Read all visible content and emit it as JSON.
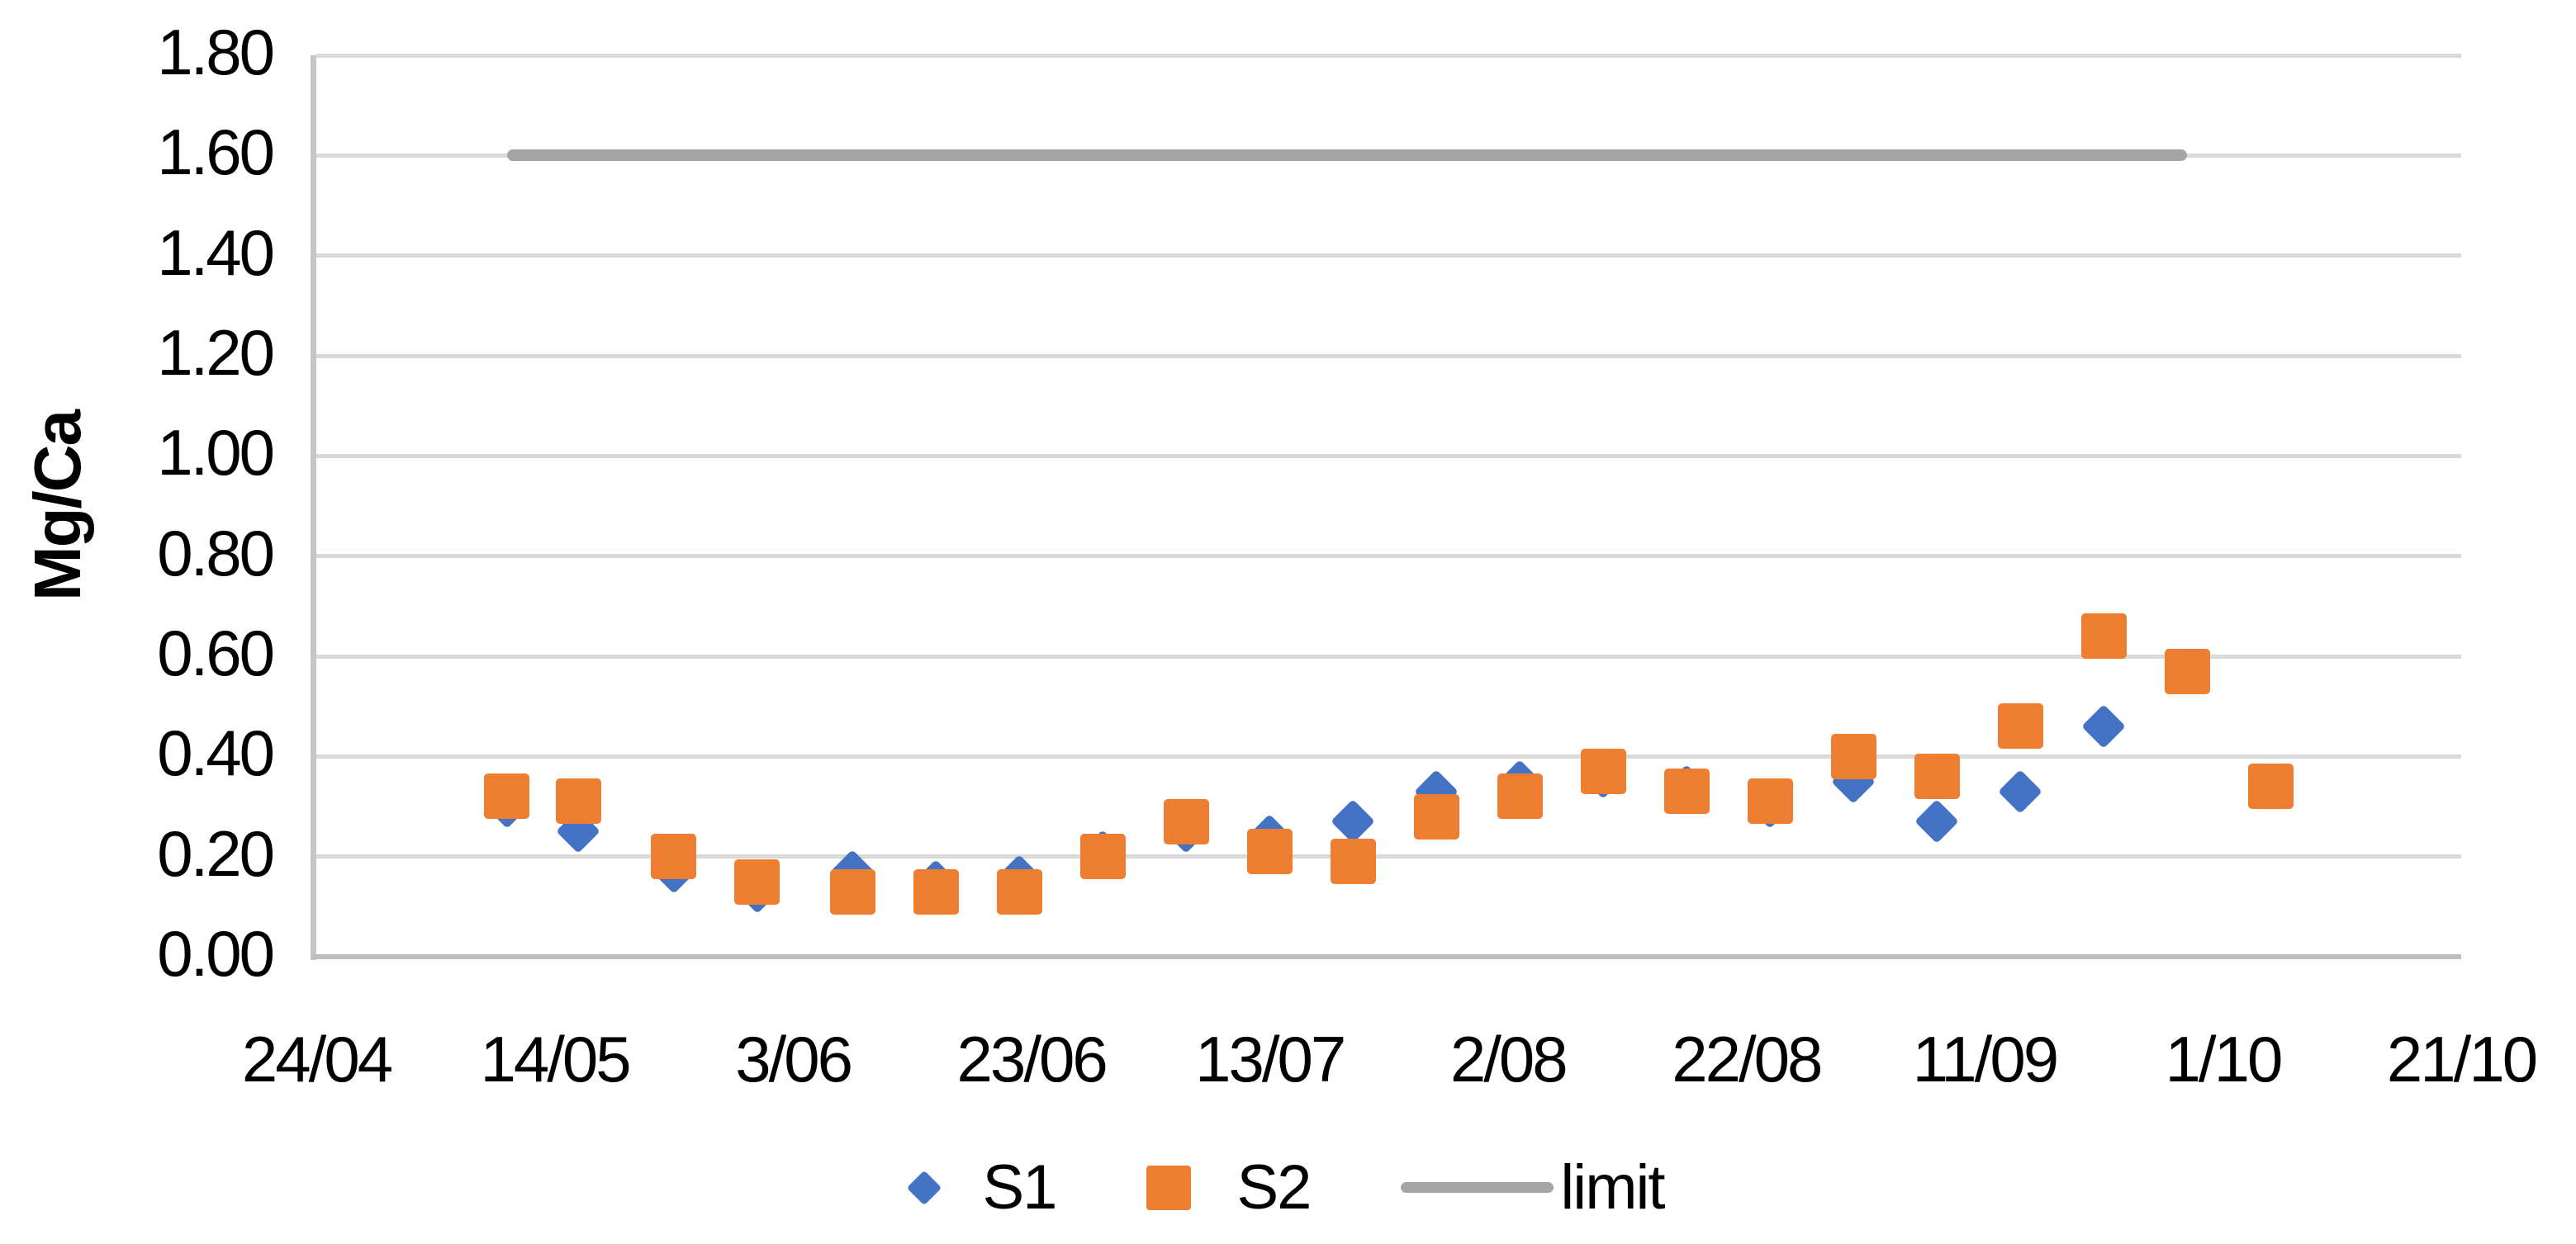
{
  "chart_data": {
    "type": "scatter",
    "title": "",
    "xlabel": "",
    "ylabel": "Mg/Ca",
    "ylim": [
      0,
      1.8
    ],
    "ytick_step": 0.2,
    "ytick_labels": [
      "0.00",
      "0.20",
      "0.40",
      "0.60",
      "0.80",
      "1.00",
      "1.20",
      "1.40",
      "1.60",
      "1.80"
    ],
    "grid": "horizontal",
    "legend_position": "bottom",
    "x_axis": {
      "type": "date",
      "tick_labels": [
        "24/04",
        "14/05",
        "3/06",
        "23/06",
        "13/07",
        "2/08",
        "22/08",
        "11/09",
        "1/10",
        "21/10"
      ],
      "tick_day_offsets": [
        0,
        20,
        40,
        60,
        80,
        100,
        120,
        140,
        160,
        180
      ],
      "range_days": [
        0,
        180
      ]
    },
    "series": [
      {
        "name": "S1",
        "marker": "diamond",
        "color": "#4472C4",
        "points": [
          {
            "date": "10/05",
            "day": 16,
            "value": 0.3
          },
          {
            "date": "16/05",
            "day": 22,
            "value": 0.25
          },
          {
            "date": "24/05",
            "day": 30,
            "value": 0.17
          },
          {
            "date": "31/05",
            "day": 37,
            "value": 0.13
          },
          {
            "date": "8/06",
            "day": 45,
            "value": 0.17
          },
          {
            "date": "15/06",
            "day": 52,
            "value": 0.15
          },
          {
            "date": "22/06",
            "day": 59,
            "value": 0.16
          },
          {
            "date": "29/06",
            "day": 66,
            "value": 0.21
          },
          {
            "date": "6/07",
            "day": 73,
            "value": 0.25
          },
          {
            "date": "13/07",
            "day": 80,
            "value": 0.24
          },
          {
            "date": "20/07",
            "day": 87,
            "value": 0.27
          },
          {
            "date": "27/07",
            "day": 94,
            "value": 0.33
          },
          {
            "date": "3/08",
            "day": 101,
            "value": 0.35
          },
          {
            "date": "10/08",
            "day": 108,
            "value": 0.36
          },
          {
            "date": "17/08",
            "day": 115,
            "value": 0.34
          },
          {
            "date": "24/08",
            "day": 122,
            "value": 0.3
          },
          {
            "date": "31/08",
            "day": 129,
            "value": 0.35
          },
          {
            "date": "7/09",
            "day": 136,
            "value": 0.27
          },
          {
            "date": "14/09",
            "day": 143,
            "value": 0.33
          },
          {
            "date": "21/09",
            "day": 150,
            "value": 0.46
          }
        ]
      },
      {
        "name": "S2",
        "marker": "square",
        "color": "#ED7D31",
        "points": [
          {
            "date": "10/05",
            "day": 16,
            "value": 0.32
          },
          {
            "date": "16/05",
            "day": 22,
            "value": 0.31
          },
          {
            "date": "24/05",
            "day": 30,
            "value": 0.2
          },
          {
            "date": "31/05",
            "day": 37,
            "value": 0.15
          },
          {
            "date": "8/06",
            "day": 45,
            "value": 0.13
          },
          {
            "date": "15/06",
            "day": 52,
            "value": 0.13
          },
          {
            "date": "22/06",
            "day": 59,
            "value": 0.13
          },
          {
            "date": "29/06",
            "day": 66,
            "value": 0.2
          },
          {
            "date": "6/07",
            "day": 73,
            "value": 0.27
          },
          {
            "date": "13/07",
            "day": 80,
            "value": 0.21
          },
          {
            "date": "20/07",
            "day": 87,
            "value": 0.19
          },
          {
            "date": "27/07",
            "day": 94,
            "value": 0.28
          },
          {
            "date": "3/08",
            "day": 101,
            "value": 0.32
          },
          {
            "date": "10/08",
            "day": 108,
            "value": 0.37
          },
          {
            "date": "17/08",
            "day": 115,
            "value": 0.33
          },
          {
            "date": "24/08",
            "day": 122,
            "value": 0.31
          },
          {
            "date": "31/08",
            "day": 129,
            "value": 0.4
          },
          {
            "date": "7/09",
            "day": 136,
            "value": 0.36
          },
          {
            "date": "14/09",
            "day": 143,
            "value": 0.46
          },
          {
            "date": "21/09",
            "day": 150,
            "value": 0.64
          },
          {
            "date": "28/09",
            "day": 157,
            "value": 0.57
          },
          {
            "date": "5/10",
            "day": 164,
            "value": 0.34
          }
        ]
      },
      {
        "name": "limit",
        "marker": "line",
        "color": "#A5A5A5",
        "value": 1.6,
        "start_date": "10/05",
        "end_date": "28/09",
        "start_day": 16,
        "end_day": 157
      }
    ]
  },
  "legend": {
    "s1_label": "S1",
    "s2_label": "S2",
    "limit_label": "limit"
  }
}
